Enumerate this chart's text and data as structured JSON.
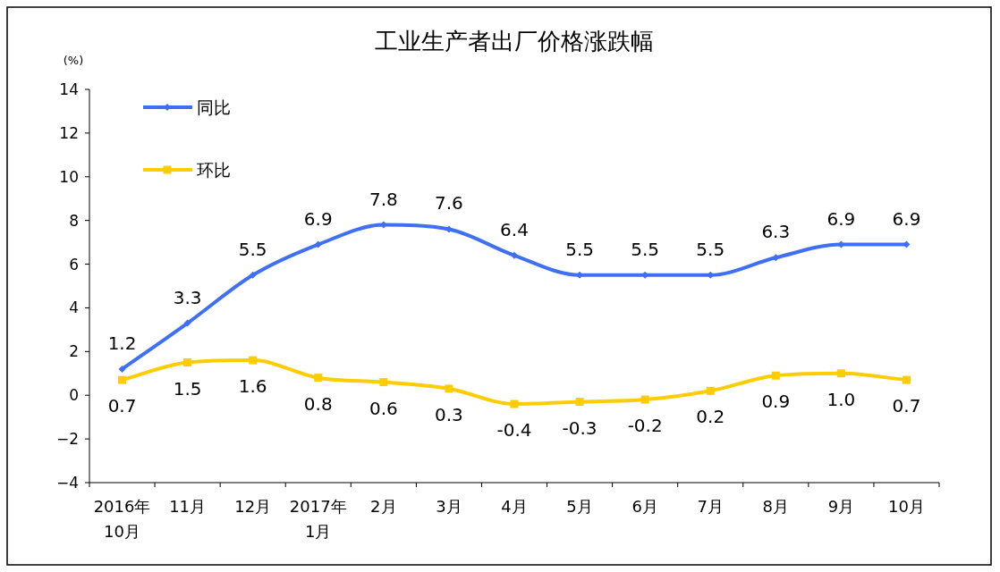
{
  "chart_data": {
    "type": "line",
    "title": "工业生产者出厂价格涨跌幅",
    "ylabel": "(%)",
    "categories": [
      "2016年\n10月",
      "11月",
      "12月",
      "2017年\n1月",
      "2月",
      "3月",
      "4月",
      "5月",
      "6月",
      "7月",
      "8月",
      "9月",
      "10月"
    ],
    "ylim": [
      -4,
      14
    ],
    "yticks": [
      -4,
      -2,
      0,
      2,
      4,
      6,
      8,
      10,
      12,
      14
    ],
    "grid": false,
    "legend": "top left",
    "line_style": "solid",
    "series": [
      {
        "name": "同比",
        "color": "#3f6ff5",
        "marker": "diamond",
        "values": [
          1.2,
          3.3,
          5.5,
          6.9,
          7.8,
          7.6,
          6.4,
          5.5,
          5.5,
          5.5,
          6.3,
          6.9,
          6.9
        ],
        "value_labels": [
          "1.2",
          "3.3",
          "5.5",
          "6.9",
          "7.8",
          "7.6",
          "6.4",
          "5.5",
          "5.5",
          "5.5",
          "6.3",
          "6.9",
          "6.9"
        ]
      },
      {
        "name": "环比",
        "color": "#ffcc00",
        "marker": "square",
        "values": [
          0.7,
          1.5,
          1.6,
          0.8,
          0.6,
          0.3,
          -0.4,
          -0.3,
          -0.2,
          0.2,
          0.9,
          1.0,
          0.7
        ],
        "value_labels": [
          "0.7",
          "1.5",
          "1.6",
          "0.8",
          "0.6",
          "0.3",
          "-0.4",
          "-0.3",
          "-0.2",
          "0.2",
          "0.9",
          "1.0",
          "0.7"
        ]
      }
    ]
  }
}
